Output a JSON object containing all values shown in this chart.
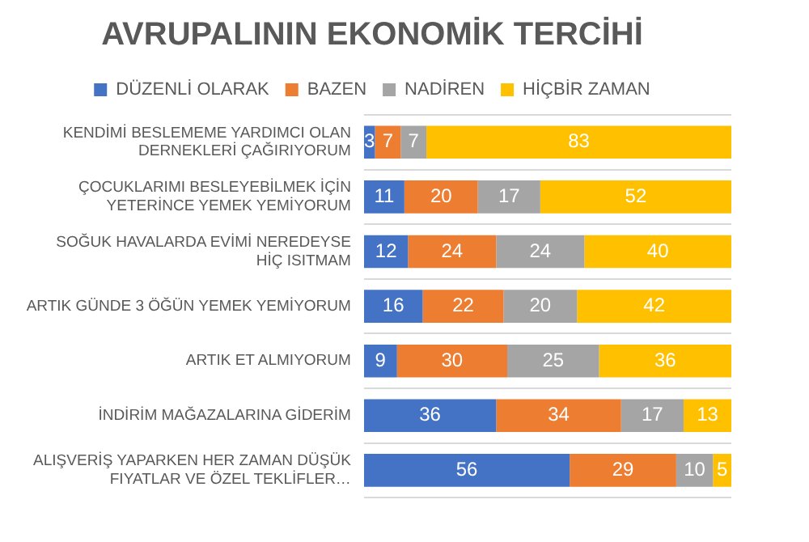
{
  "chart_data": {
    "type": "bar",
    "orientation": "horizontal",
    "stacked": true,
    "title": "AVRUPALININ EKONOMİK TERCİHİ",
    "categories": [
      "KENDİMİ BESLEMEME YARDIMCI OLAN DERNEKLERİ ÇAĞIRIYORUM",
      "ÇOCUKLARIMI BESLEYEBİLMEK İÇİN YETERİNCE YEMEK YEMİYORUM",
      "SOĞUK HAVALARDA EVİMİ NEREDEYSE HİÇ ISITMAM",
      "ARTIK GÜNDE 3 ÖĞÜN YEMEK YEMİYORUM",
      "ARTIK ET ALMIYORUM",
      "İNDİRİM MAĞAZALARINA GİDERİM",
      "ALIŞVERİŞ YAPARKEN HER ZAMAN DÜŞÜK FIYATLAR VE ÖZEL TEKLİFLER…"
    ],
    "series": [
      {
        "name": "DÜZENLİ OLARAK",
        "color": "#4472c4",
        "values": [
          3,
          11,
          12,
          16,
          9,
          36,
          56
        ]
      },
      {
        "name": "BAZEN",
        "color": "#ed7d31",
        "values": [
          7,
          20,
          24,
          22,
          30,
          34,
          29
        ]
      },
      {
        "name": "NADİREN",
        "color": "#a5a5a5",
        "values": [
          7,
          17,
          24,
          20,
          25,
          17,
          10
        ]
      },
      {
        "name": "HİÇBİR ZAMAN",
        "color": "#ffc000",
        "values": [
          83,
          52,
          40,
          42,
          36,
          13,
          5
        ]
      }
    ],
    "data_labels": true,
    "legend": "top",
    "grid": "y"
  }
}
